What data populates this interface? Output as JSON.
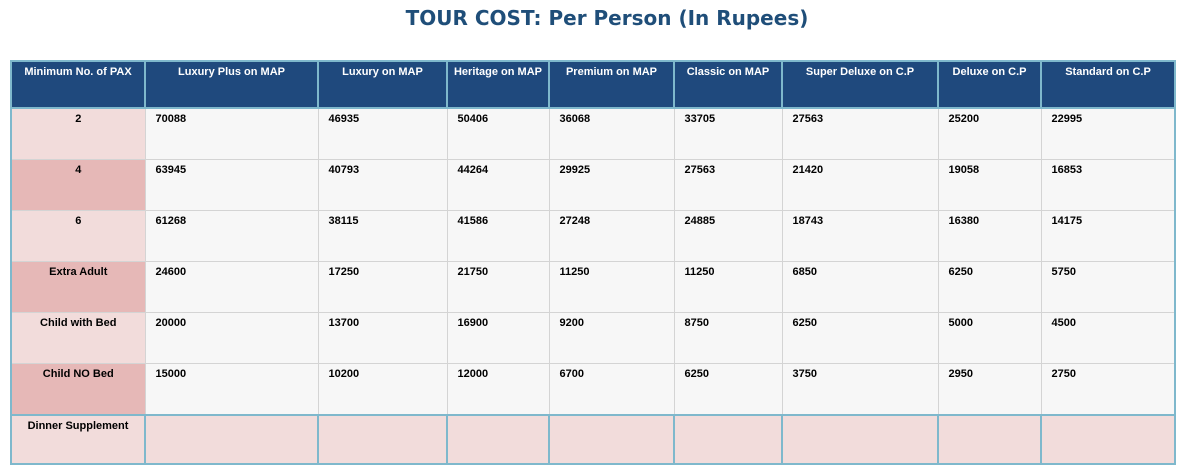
{
  "title": "TOUR COST: Per Person (In Rupees)",
  "table": {
    "headers": [
      "Minimum No. of PAX",
      "Luxury Plus on MAP",
      "Luxury on MAP",
      "Heritage on MAP",
      "Premium on MAP",
      "Classic on MAP",
      "Super Deluxe on C.P",
      "Deluxe on C.P",
      "Standard on C.P"
    ],
    "rows": [
      {
        "label": "2",
        "values": [
          "70088",
          "46935",
          "50406",
          "36068",
          "33705",
          "27563",
          "25200",
          "22995"
        ]
      },
      {
        "label": "4",
        "values": [
          "63945",
          "40793",
          "44264",
          "29925",
          "27563",
          "21420",
          "19058",
          "16853"
        ]
      },
      {
        "label": "6",
        "values": [
          "61268",
          "38115",
          "41586",
          "27248",
          "24885",
          "18743",
          "16380",
          "14175"
        ]
      },
      {
        "label": "Extra Adult",
        "values": [
          "24600",
          "17250",
          "21750",
          "11250",
          "11250",
          "6850",
          "6250",
          "5750"
        ]
      },
      {
        "label": "Child with Bed",
        "values": [
          "20000",
          "13700",
          "16900",
          "9200",
          "8750",
          "6250",
          "5000",
          "4500"
        ]
      },
      {
        "label": "Child NO Bed",
        "values": [
          "15000",
          "10200",
          "12000",
          "6700",
          "6250",
          "3750",
          "2950",
          "2750"
        ]
      }
    ],
    "supplement": {
      "label": "Dinner Supplement",
      "values": [
        "",
        "",
        "",
        "",
        "",
        "",
        "",
        ""
      ]
    }
  },
  "colors": {
    "title": "#1f4e79",
    "header_bg": "#1f497d",
    "header_border": "#7fb8cc",
    "label_light": "#f2dcdb",
    "label_dark": "#e6b8b7",
    "cell_bg": "#f7f7f7"
  }
}
